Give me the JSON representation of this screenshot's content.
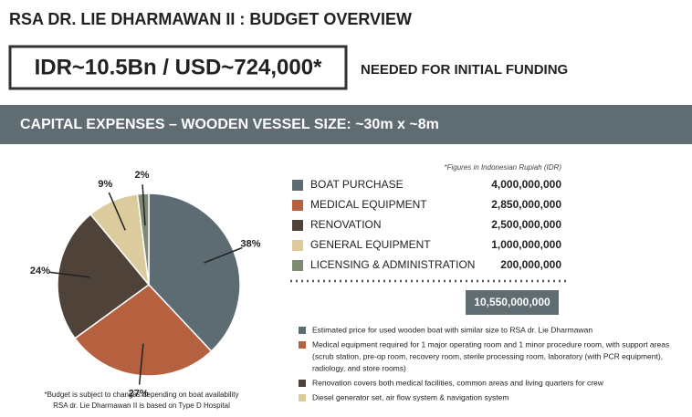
{
  "title": "RSA DR. LIE DHARMAWAN II : BUDGET OVERVIEW",
  "headline": "IDR~10.5Bn / USD~724,000*",
  "headline_note": "NEEDED FOR INITIAL FUNDING",
  "banner": "CAPITAL EXPENSES – WOODEN VESSEL SIZE: ~30m x ~8m",
  "chart_data": {
    "type": "pie",
    "categories": [
      "BOAT PURCHASE",
      "MEDICAL EQUIPMENT",
      "RENOVATION",
      "GENERAL EQUIPMENT",
      "LICENSING & ADMINISTRATION"
    ],
    "values": [
      38,
      27,
      24,
      9,
      2
    ],
    "value_labels": [
      "38%",
      "27%",
      "24%",
      "9%",
      "2%"
    ],
    "colors": [
      "#5d6b73",
      "#b5613f",
      "#4f4239",
      "#dccb9c",
      "#7e8a72"
    ]
  },
  "table": {
    "note": "*Figures in Indonesian Rupiah (IDR)",
    "amounts": [
      "4,000,000,000",
      "2,850,000,000",
      "2,500,000,000",
      "1,000,000,000",
      "200,000,000"
    ],
    "total": "10,550,000,000"
  },
  "notes": [
    [
      "Estimated price for used wooden boat with similar size to RSA dr. Lie Dharmawan"
    ],
    [
      "Medical equipment required for 1 major operating room and 1 minor procedure room, with support areas",
      "(scrub station, pre-op room, recovery room, sterile processing room, laboratory (with PCR equipment),",
      "radiology, and store rooms)"
    ],
    [
      "Renovation covers both medical facilities, common areas and living quarters for crew"
    ],
    [
      "Diesel generator set, air flow system & navigation system"
    ]
  ],
  "footnote": [
    "*Budget is subject to changes depending on boat availability",
    "RSA dr. Lie Dharmawan II is based on Type D Hospital"
  ]
}
